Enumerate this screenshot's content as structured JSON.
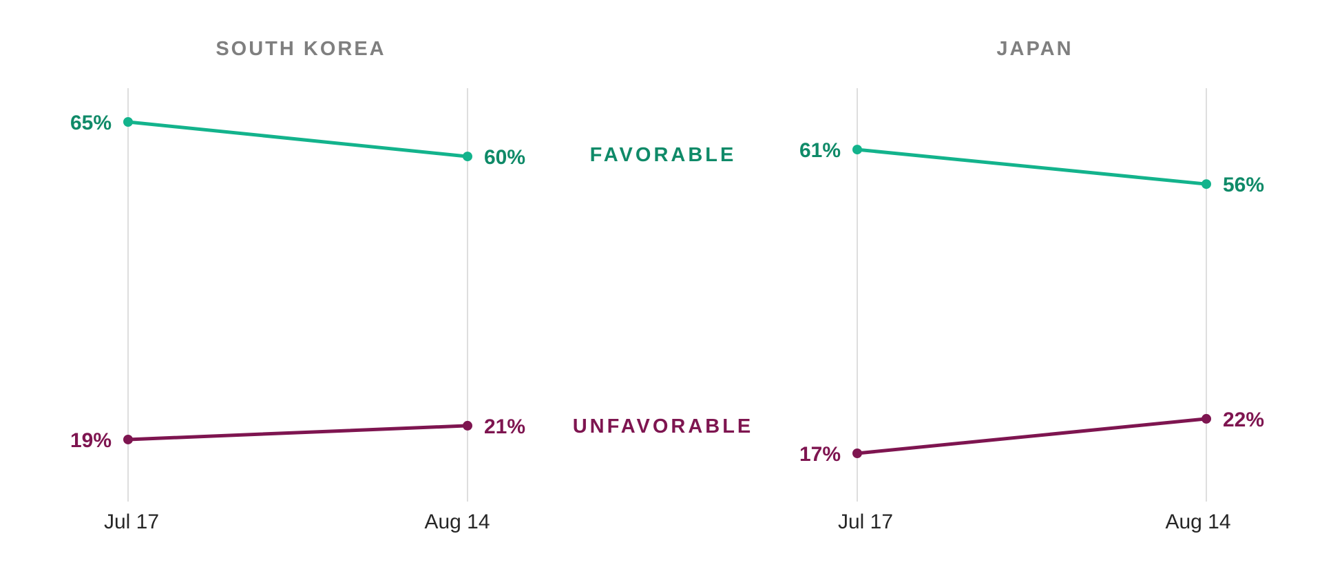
{
  "chart_data": {
    "type": "line",
    "series_labels": [
      "FAVORABLE",
      "UNFAVORABLE"
    ],
    "colors": {
      "favorable_line": "#13b38c",
      "favorable_text": "#0f8a68",
      "unfavorable_line": "#7e1550",
      "unfavorable_text": "#7e1550",
      "title": "#7f7f7f",
      "gridline": "#d4d4d4"
    },
    "panels": [
      {
        "title": "SOUTH KOREA",
        "x": [
          "Jul 17",
          "Aug 14"
        ],
        "series": [
          {
            "name": "FAVORABLE",
            "values": [
              65,
              60
            ],
            "labels": [
              "65%",
              "60%"
            ]
          },
          {
            "name": "UNFAVORABLE",
            "values": [
              19,
              21
            ],
            "labels": [
              "19%",
              "21%"
            ]
          }
        ]
      },
      {
        "title": "JAPAN",
        "x": [
          "Jul 17",
          "Aug 14"
        ],
        "series": [
          {
            "name": "FAVORABLE",
            "values": [
              61,
              56
            ],
            "labels": [
              "61%",
              "56%"
            ]
          },
          {
            "name": "UNFAVORABLE",
            "values": [
              17,
              22
            ],
            "labels": [
              "17%",
              "22%"
            ]
          }
        ]
      }
    ]
  }
}
